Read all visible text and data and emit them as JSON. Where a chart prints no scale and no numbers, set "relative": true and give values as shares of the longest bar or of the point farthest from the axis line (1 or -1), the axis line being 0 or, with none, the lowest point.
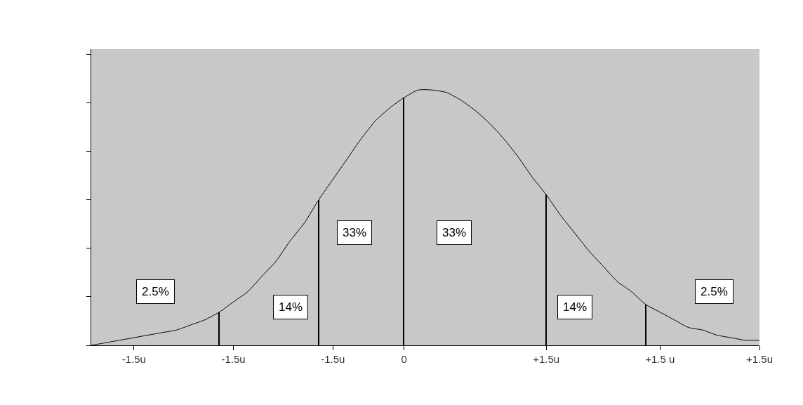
{
  "chart_data": {
    "type": "line",
    "relative": true,
    "tick_labels": "x",
    "grid": false,
    "marker": "none",
    "line_style": "solid",
    "categories": [
      null,
      null,
      null,
      "-1.5u",
      null,
      null,
      null,
      null,
      null,
      null,
      "-1.5u",
      null,
      null,
      null,
      null,
      null,
      null,
      "-1.5u",
      null,
      null,
      null,
      null,
      "0",
      null,
      null,
      null,
      null,
      null,
      null,
      null,
      null,
      null,
      "+1.5u",
      null,
      null,
      null,
      null,
      null,
      null,
      null,
      "+1.5 u",
      null,
      null,
      null,
      null,
      null,
      null,
      "+1.5u"
    ],
    "series": [
      {
        "color": "#000000",
        "values": [
          0,
          0.01,
          0.02,
          0.03,
          0.04,
          0.05,
          0.06,
          0.08,
          0.1,
          0.13,
          0.17,
          0.21,
          0.27,
          0.33,
          0.41,
          0.48,
          0.57,
          0.65,
          0.73,
          0.81,
          0.88,
          0.93,
          0.97,
          1.0,
          1.0,
          0.99,
          0.96,
          0.92,
          0.87,
          0.81,
          0.74,
          0.66,
          0.59,
          0.51,
          0.44,
          0.37,
          0.31,
          0.25,
          0.21,
          0.16,
          0.13,
          0.1,
          0.07,
          0.06,
          0.04,
          0.03,
          0.02,
          0.02
        ]
      },
      {
        "type": "bar",
        "color": "#000000",
        "values": [
          null,
          null,
          null,
          null,
          null,
          null,
          null,
          null,
          null,
          0.13,
          null,
          null,
          null,
          null,
          null,
          null,
          0.57,
          null,
          null,
          null,
          null,
          null,
          0.97,
          null,
          null,
          null,
          null,
          null,
          null,
          null,
          null,
          null,
          0.59,
          null,
          null,
          null,
          null,
          null,
          null,
          0.16,
          null,
          null,
          null,
          null,
          null,
          null,
          null,
          null
        ]
      }
    ],
    "annotations": [
      "2.5%",
      "14%",
      "33%",
      "33%",
      "14%",
      "2.5%"
    ]
  }
}
